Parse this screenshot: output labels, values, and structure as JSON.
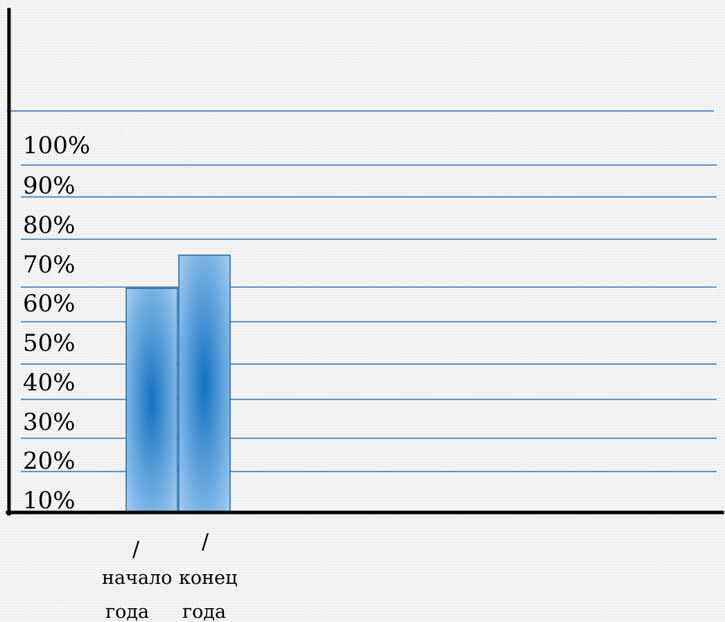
{
  "chart_data": {
    "type": "bar",
    "categories": [
      {
        "lines": [
          "начало",
          "года"
        ],
        "mark": "/"
      },
      {
        "lines": [
          "конец",
          "года"
        ],
        "mark": "/"
      }
    ],
    "values": [
      61,
      70
    ],
    "y_ticks": [
      "10%",
      "20%",
      "30%",
      "40%",
      "50%",
      "60%",
      "70%",
      "80%",
      "90%",
      "100%"
    ],
    "title": "",
    "xlabel": "",
    "ylabel": "",
    "grid": true,
    "colors": {
      "bar_center": "#1373c2",
      "bar_edge": "#aed4f5",
      "bar_stroke": "#1b6aa8",
      "grid": "#2f6fb0",
      "axis": "#000000"
    }
  }
}
